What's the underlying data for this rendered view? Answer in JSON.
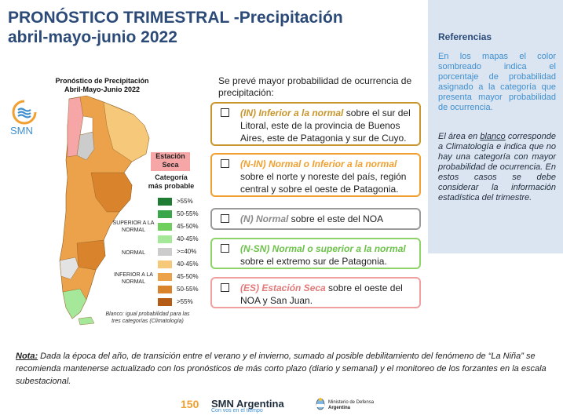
{
  "title_line1": "PRONÓSTICO TRIMESTRAL -Precipitación",
  "title_line2": "abril-mayo-junio 2022",
  "sidebar": {
    "heading": "Referencias",
    "para1": "En los mapas el color sombreado indica el porcentaje de probabilidad asignado a la categoría que presenta mayor probabilidad de ocurrencia.",
    "para2_a": "El área en ",
    "para2_u": "blanco",
    "para2_b": " corresponde a Climatología e indica que no hay una categoría con mayor probabilidad de ocurrencia. En estos casos se debe considerar la información estadística del trimestre."
  },
  "map": {
    "title": "Pronóstico de Precipitación Abril-Mayo-Junio 2022",
    "logo_text": "SMN",
    "seca_label": "Estación Seca",
    "legend_title": "Categoría más probable",
    "groups": [
      {
        "label": "SUPERIOR A LA NORMAL"
      },
      {
        "label": "NORMAL"
      },
      {
        "label": "INFERIOR A LA NORMAL"
      }
    ],
    "legend": [
      {
        "label": ">55%",
        "color": "#1e7d32"
      },
      {
        "label": "50-55%",
        "color": "#3aa64a"
      },
      {
        "label": "45-50%",
        "color": "#6fcf5c"
      },
      {
        "label": "40-45%",
        "color": "#a6e89a"
      },
      {
        "label": ">=40%",
        "color": "#cccccc"
      },
      {
        "label": "40-45%",
        "color": "#f5c87a"
      },
      {
        "label": "45-50%",
        "color": "#eba24a"
      },
      {
        "label": "50-55%",
        "color": "#d9832d"
      },
      {
        "label": ">55%",
        "color": "#b45c16"
      }
    ],
    "blanco_note": "Blanco: igual probabilidad para las tres categorías (Climatología)"
  },
  "intro": "Se prevé mayor probabilidad de ocurrencia de precipitación:",
  "boxes": [
    {
      "label": "(IN) Inferior a la normal",
      "text": " sobre el sur del Litoral, este de la provincia de Buenos Aires, este de Patagonia y sur de Cuyo.",
      "border": "#c8962c",
      "label_color": "#c8962c"
    },
    {
      "label": "(N-IN) Normal o Inferior a la normal",
      "text": " sobre el norte y noreste del país, región central y sobre el oeste de Patagonia.",
      "border": "#f0a030",
      "label_color": "#f0a030"
    },
    {
      "label": "(N) Normal",
      "text": " sobre el este del NOA",
      "border": "#9a9a9a",
      "label_color": "#8a8a8a"
    },
    {
      "label": "(N-SN) Normal o superior a la normal",
      "text": " sobre el extremo sur de Patagonia.",
      "border": "#8ed26a",
      "label_color": "#6cc24a"
    },
    {
      "label": "(ES) Estación Seca",
      "text": " sobre el oeste del NOA y San Juan.",
      "border": "#f0a0a0",
      "label_color": "#e27a7a"
    }
  ],
  "nota_label": "Nota:",
  "nota_text": " Dada la época del año, de transición entre el verano y el invierno, sumado al posible debilitamiento del fenómeno de “La Niña” se recomienda mantenerse actualizado con los pronósticos de más corto plazo (diario y semanal) y el monitoreo de los forzantes en la escala subestacional.",
  "footer": {
    "brand": "SMN Argentina",
    "tagline": "Con vos en el tiempo",
    "ministry_line1": "Ministerio de Defensa",
    "ministry_line2": "Argentina"
  }
}
